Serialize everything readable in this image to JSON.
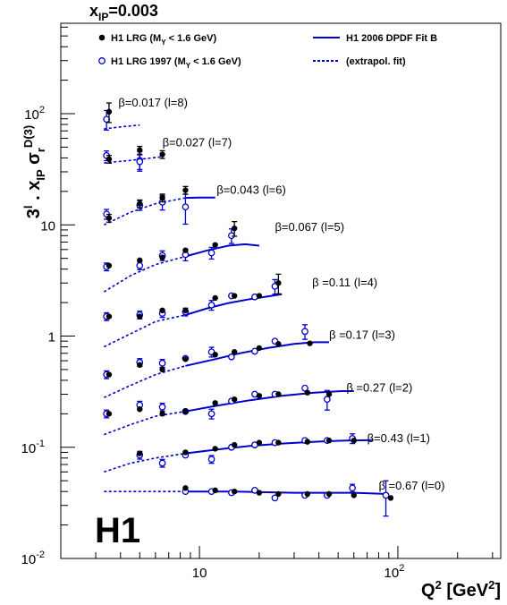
{
  "chart_data": {
    "type": "scatter",
    "title_parts": {
      "x": "x",
      "sub": "IP",
      "rest": "=0.003"
    },
    "ylabel_parts": {
      "p1": "3",
      "sup1": "l",
      "p2": " . x",
      "sub1": "IP",
      "p3": " σ",
      "sub2": "r",
      "sup2": "D(3)"
    },
    "xlabel_parts": {
      "p1": "Q",
      "sup1": "2",
      "p2": " [GeV",
      "sup2": "2",
      "p3": "]"
    },
    "x_ticks": [
      {
        "v": 10,
        "m": "10",
        "e": ""
      },
      {
        "v": 100,
        "m": "10",
        "e": "2"
      }
    ],
    "y_ticks": [
      {
        "v": 0.01,
        "m": "10",
        "e": "-2"
      },
      {
        "v": 0.1,
        "m": "10",
        "e": "-1"
      },
      {
        "v": 1,
        "m": "1",
        "e": ""
      },
      {
        "v": 10,
        "m": "10",
        "e": ""
      },
      {
        "v": 100,
        "m": "10",
        "e": "2"
      }
    ],
    "xlim": [
      2,
      330
    ],
    "ylim": [
      0.01,
      650
    ],
    "xscale": "log",
    "yscale": "log",
    "experiment_logo": "H1",
    "colors": {
      "lrg": "#000000",
      "lrg1997": "#0000cc",
      "fit": "#0000cc"
    },
    "legend": [
      {
        "marker": "filled-circle",
        "p1": "H1 LRG (M",
        "sub": "Y",
        "p2": " < 1.6 GeV)"
      },
      {
        "marker": "open-circle",
        "p1": "H1 LRG 1997 (M",
        "sub": "Y",
        "p2": " < 1.6 GeV)"
      },
      {
        "marker": "solid-line",
        "p1": "H1 2006 DPDF Fit B"
      },
      {
        "marker": "dashed-line",
        "p1": "(extrapol. fit)"
      }
    ],
    "series": [
      {
        "beta_label": "β=0.017 (l=8)",
        "label_x": 3.9,
        "label_y": 125,
        "lrg": [
          [
            3.5,
            104,
            0.2
          ],
          [
            5,
            47,
            0.08
          ]
        ],
        "lrg1997": [
          [
            3.4,
            89,
            0.2
          ],
          [
            5,
            38,
            0.2
          ]
        ],
        "fit_dashed": [
          [
            3.3,
            73
          ],
          [
            4,
            76
          ],
          [
            5,
            79
          ]
        ],
        "fit_solid": []
      },
      {
        "beta_label": "β=0.027 (l=7)",
        "label_x": 6.5,
        "label_y": 55,
        "lrg": [
          [
            3.5,
            39,
            0.08
          ],
          [
            6.5,
            43,
            0.08
          ]
        ],
        "lrg1997": [
          [
            3.4,
            42,
            0.1
          ],
          [
            5,
            37,
            0.15
          ]
        ],
        "fit_dashed": [
          [
            3.3,
            36
          ],
          [
            4.5,
            38
          ],
          [
            6.5,
            41
          ]
        ],
        "fit_solid": []
      },
      {
        "beta_label": "β=0.043 (l=6)",
        "label_x": 12.2,
        "label_y": 20.5,
        "lrg": [
          [
            3.5,
            11.5,
            0.08
          ],
          [
            5,
            15.5,
            0.08
          ],
          [
            6.5,
            17.5,
            0.08
          ],
          [
            8.5,
            20.5,
            0.08
          ]
        ],
        "lrg1997": [
          [
            3.4,
            12.5,
            0.1
          ],
          [
            5,
            15,
            0.1
          ],
          [
            6.5,
            16,
            0.15
          ],
          [
            8.5,
            14.5,
            0.3
          ]
        ],
        "fit_dashed": [
          [
            3.3,
            10
          ],
          [
            4.5,
            13
          ],
          [
            6,
            15.5
          ],
          [
            8.5,
            17.5
          ]
        ],
        "fit_solid": [
          [
            8.5,
            17.5
          ],
          [
            10,
            17.6
          ],
          [
            12,
            17.6
          ]
        ]
      },
      {
        "beta_label": "β=0.067 (l=5)",
        "label_x": 24,
        "label_y": 9.5,
        "lrg": [
          [
            3.5,
            4.3,
            0.06
          ],
          [
            5,
            4.8,
            0.06
          ],
          [
            6.5,
            5.1,
            0.06
          ],
          [
            8.5,
            5.9,
            0.06
          ],
          [
            12,
            6.6,
            0.06
          ],
          [
            15,
            9.3,
            0.15
          ]
        ],
        "lrg1997": [
          [
            3.4,
            4.2,
            0.08
          ],
          [
            5,
            4.3,
            0.08
          ],
          [
            6.5,
            5.3,
            0.1
          ],
          [
            8.5,
            5.4,
            0.12
          ],
          [
            11.5,
            5.6,
            0.12
          ],
          [
            14.5,
            8,
            0.15
          ]
        ],
        "fit_dashed": [
          [
            3.3,
            2.5
          ],
          [
            4.5,
            3.5
          ],
          [
            6,
            4.4
          ],
          [
            8.5,
            5.2
          ]
        ],
        "fit_solid": [
          [
            8.5,
            5.2
          ],
          [
            11,
            5.9
          ],
          [
            14,
            6.5
          ],
          [
            17,
            6.7
          ],
          [
            20,
            6.5
          ]
        ]
      },
      {
        "beta_label": "β =0.11 (l=4)",
        "label_x": 37,
        "label_y": 3.0,
        "lrg": [
          [
            3.5,
            1.5,
            0.06
          ],
          [
            5,
            1.5,
            0.06
          ],
          [
            6.5,
            1.7,
            0.06
          ],
          [
            8.5,
            1.7,
            0.06
          ],
          [
            12,
            2.2,
            0.06
          ],
          [
            15,
            2.3,
            0.06
          ],
          [
            20,
            2.3,
            0.06
          ],
          [
            25,
            3.0,
            0.2
          ]
        ],
        "lrg1997": [
          [
            3.4,
            1.5,
            0.08
          ],
          [
            5,
            1.55,
            0.08
          ],
          [
            6.5,
            1.6,
            0.08
          ],
          [
            8.5,
            1.65,
            0.08
          ],
          [
            11.5,
            1.9,
            0.1
          ],
          [
            14.5,
            2.3,
            0.06
          ],
          [
            19,
            2.25,
            0.06
          ],
          [
            24,
            2.8,
            0.15
          ]
        ],
        "fit_dashed": [
          [
            3.3,
            0.8
          ],
          [
            4.5,
            1.05
          ],
          [
            6,
            1.35
          ],
          [
            8.5,
            1.55
          ]
        ],
        "fit_solid": [
          [
            8.5,
            1.55
          ],
          [
            11,
            1.78
          ],
          [
            14,
            1.98
          ],
          [
            18,
            2.15
          ],
          [
            23,
            2.3
          ],
          [
            26,
            2.38
          ]
        ]
      },
      {
        "beta_label": "β =0.17 (l=3)",
        "label_x": 45,
        "label_y": 1.02,
        "lrg": [
          [
            3.5,
            0.45,
            0.06
          ],
          [
            5,
            0.55,
            0.06
          ],
          [
            6.5,
            0.5,
            0.06
          ],
          [
            8.5,
            0.62,
            0.06
          ],
          [
            12,
            0.68,
            0.06
          ],
          [
            15,
            0.72,
            0.06
          ],
          [
            20,
            0.78,
            0.06
          ],
          [
            25,
            0.85,
            0.06
          ],
          [
            36,
            0.86,
            0.06
          ]
        ],
        "lrg1997": [
          [
            3.4,
            0.45,
            0.08
          ],
          [
            5,
            0.58,
            0.08
          ],
          [
            6.5,
            0.57,
            0.08
          ],
          [
            8.5,
            0.63,
            0.06
          ],
          [
            11.5,
            0.72,
            0.1
          ],
          [
            14.5,
            0.65,
            0.06
          ],
          [
            19,
            0.73,
            0.06
          ],
          [
            24,
            0.9,
            0.06
          ],
          [
            34,
            1.1,
            0.15
          ]
        ],
        "fit_dashed": [
          [
            3.3,
            0.28
          ],
          [
            4.5,
            0.36
          ],
          [
            6,
            0.45
          ],
          [
            8.5,
            0.54
          ]
        ],
        "fit_solid": [
          [
            8.5,
            0.54
          ],
          [
            12,
            0.62
          ],
          [
            16,
            0.7
          ],
          [
            22,
            0.78
          ],
          [
            30,
            0.85
          ],
          [
            38,
            0.88
          ],
          [
            45,
            0.88
          ]
        ]
      },
      {
        "beta_label": "β =0.27 (l=2)",
        "label_x": 55,
        "label_y": 0.34,
        "lrg": [
          [
            3.5,
            0.2,
            0.06
          ],
          [
            5,
            0.22,
            0.06
          ],
          [
            6.5,
            0.2,
            0.06
          ],
          [
            8.5,
            0.21,
            0.06
          ],
          [
            12,
            0.25,
            0.06
          ],
          [
            15,
            0.27,
            0.06
          ],
          [
            20,
            0.29,
            0.06
          ],
          [
            25,
            0.3,
            0.06
          ],
          [
            35,
            0.31,
            0.06
          ],
          [
            45,
            0.3,
            0.06
          ]
        ],
        "lrg1997": [
          [
            3.4,
            0.2,
            0.08
          ],
          [
            5,
            0.24,
            0.08
          ],
          [
            6.5,
            0.23,
            0.08
          ],
          [
            8.5,
            0.21,
            0.06
          ],
          [
            11.5,
            0.2,
            0.1
          ],
          [
            14.5,
            0.26,
            0.06
          ],
          [
            19,
            0.3,
            0.06
          ],
          [
            24,
            0.3,
            0.06
          ],
          [
            34,
            0.34,
            0.06
          ],
          [
            44,
            0.27,
            0.2
          ]
        ],
        "fit_dashed": [
          [
            3.3,
            0.13
          ],
          [
            4.5,
            0.16
          ],
          [
            6,
            0.19
          ],
          [
            8.5,
            0.21
          ]
        ],
        "fit_solid": [
          [
            8.5,
            0.21
          ],
          [
            12,
            0.235
          ],
          [
            18,
            0.265
          ],
          [
            26,
            0.29
          ],
          [
            38,
            0.31
          ],
          [
            52,
            0.32
          ],
          [
            60,
            0.32
          ]
        ]
      },
      {
        "beta_label": "β=0.43 (l=1)",
        "label_x": 70,
        "label_y": 0.12,
        "lrg": [
          [
            5,
            0.088,
            0.06
          ],
          [
            8.5,
            0.09,
            0.06
          ],
          [
            12,
            0.097,
            0.06
          ],
          [
            15,
            0.105,
            0.06
          ],
          [
            20,
            0.11,
            0.06
          ],
          [
            25,
            0.11,
            0.06
          ],
          [
            35,
            0.112,
            0.06
          ],
          [
            45,
            0.115,
            0.06
          ],
          [
            60,
            0.115,
            0.06
          ]
        ],
        "lrg1997": [
          [
            5,
            0.085,
            0.08
          ],
          [
            6.5,
            0.072,
            0.08
          ],
          [
            8.5,
            0.085,
            0.06
          ],
          [
            11.5,
            0.078,
            0.08
          ],
          [
            14.5,
            0.1,
            0.06
          ],
          [
            19,
            0.105,
            0.06
          ],
          [
            24,
            0.11,
            0.06
          ],
          [
            34,
            0.115,
            0.06
          ],
          [
            44,
            0.115,
            0.06
          ],
          [
            59,
            0.12,
            0.1
          ]
        ],
        "fit_dashed": [
          [
            3.3,
            0.06
          ],
          [
            4.5,
            0.072
          ],
          [
            6,
            0.08
          ],
          [
            8.5,
            0.088
          ]
        ],
        "fit_solid": [
          [
            8.5,
            0.088
          ],
          [
            12,
            0.095
          ],
          [
            18,
            0.103
          ],
          [
            26,
            0.108
          ],
          [
            38,
            0.112
          ],
          [
            55,
            0.115
          ],
          [
            75,
            0.116
          ]
        ]
      },
      {
        "beta_label": "β =0.67 (l=0)",
        "label_x": 80,
        "label_y": 0.045,
        "lrg": [
          [
            8.5,
            0.043,
            0.06
          ],
          [
            12,
            0.041,
            0.06
          ],
          [
            15,
            0.04,
            0.06
          ],
          [
            20,
            0.039,
            0.06
          ],
          [
            25,
            0.038,
            0.06
          ],
          [
            35,
            0.038,
            0.06
          ],
          [
            45,
            0.038,
            0.06
          ],
          [
            60,
            0.037,
            0.06
          ],
          [
            92,
            0.035,
            0.06
          ]
        ],
        "lrg1997": [
          [
            8.5,
            0.04,
            0.06
          ],
          [
            11.5,
            0.04,
            0.06
          ],
          [
            14.5,
            0.039,
            0.06
          ],
          [
            19,
            0.041,
            0.06
          ],
          [
            24,
            0.035,
            0.06
          ],
          [
            34,
            0.037,
            0.06
          ],
          [
            44,
            0.037,
            0.06
          ],
          [
            59,
            0.043,
            0.08
          ],
          [
            87,
            0.037,
            0.35
          ]
        ],
        "fit_dashed": [
          [
            3.3,
            0.04
          ],
          [
            5,
            0.04
          ],
          [
            7,
            0.04
          ],
          [
            8.5,
            0.04
          ]
        ],
        "fit_solid": [
          [
            8.5,
            0.04
          ],
          [
            15,
            0.04
          ],
          [
            30,
            0.039
          ],
          [
            60,
            0.039
          ],
          [
            90,
            0.038
          ]
        ]
      }
    ]
  }
}
